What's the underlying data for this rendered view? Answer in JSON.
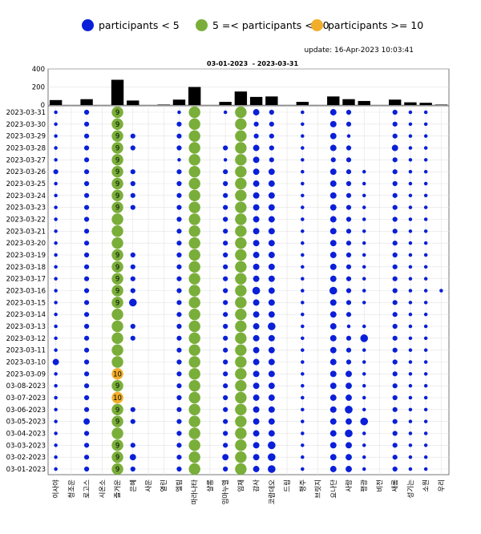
{
  "legend": {
    "items": [
      {
        "label": "participants < 5",
        "color": "#0a1fd8"
      },
      {
        "label": "5 =< participants < 10",
        "color": "#7aae3a"
      },
      {
        "label": "participants >= 10",
        "color": "#f2ae2a"
      }
    ]
  },
  "update_text": "update: 16-Apr-2023 10:03:41",
  "chart_data": {
    "type": "scatter",
    "title": "03-01-2023  - 2023-03-31",
    "bar_ylim": [
      0,
      400
    ],
    "bar_yticks": [
      "400",
      "200",
      "0"
    ],
    "categories": [
      "이사야",
      "청조운",
      "로고스",
      "시온소",
      "즐거운",
      "은혜",
      "사운",
      "열린",
      "엘림",
      "마라나타",
      "샬롬",
      "임마누엘",
      "임재",
      "감사",
      "코람데오",
      "드림",
      "평주",
      "브릿지",
      "요나단",
      "사랑",
      "평광",
      "비전",
      "새롬",
      "성기는",
      "소원",
      "우리"
    ],
    "bar_values": [
      55,
      0,
      65,
      0,
      280,
      50,
      0,
      5,
      60,
      200,
      0,
      35,
      150,
      90,
      95,
      0,
      35,
      0,
      95,
      65,
      45,
      0,
      60,
      30,
      25,
      5
    ],
    "dates": [
      "2023-03-31",
      "2023-03-30",
      "2023-03-29",
      "2023-03-28",
      "2023-03-27",
      "2023-03-26",
      "2023-03-25",
      "2023-03-24",
      "2023-03-23",
      "2023-03-22",
      "2023-03-21",
      "2023-03-20",
      "2023-03-19",
      "2023-03-18",
      "2023-03-17",
      "2023-03-16",
      "2023-03-15",
      "2023-03-14",
      "2023-03-13",
      "2023-03-12",
      "2023-03-11",
      "2023-03-10",
      "2023-03-09",
      "03-08-2023",
      "03-07-2023",
      "03-06-2023",
      "03-05-2023",
      "03-04-2023",
      "03-03-2023",
      "03-02-2023",
      "03-01-2023"
    ],
    "points": [
      {
        "date": "2023-03-31",
        "values": [
          1,
          0,
          2,
          0,
          9,
          0,
          0,
          0,
          1,
          8,
          0,
          1,
          5,
          3,
          2,
          0,
          1,
          0,
          3,
          2,
          0,
          0,
          2,
          1,
          1,
          0
        ]
      },
      {
        "date": "2023-03-30",
        "values": [
          1,
          0,
          2,
          0,
          9,
          0,
          0,
          0,
          2,
          8,
          0,
          0,
          5,
          2,
          2,
          0,
          1,
          0,
          3,
          2,
          0,
          0,
          2,
          1,
          1,
          0
        ]
      },
      {
        "date": "2023-03-29",
        "values": [
          1,
          0,
          2,
          0,
          9,
          2,
          0,
          0,
          2,
          8,
          0,
          0,
          5,
          2,
          2,
          0,
          1,
          0,
          3,
          1,
          0,
          0,
          2,
          1,
          1,
          0
        ]
      },
      {
        "date": "2023-03-28",
        "values": [
          1,
          0,
          2,
          0,
          9,
          2,
          0,
          0,
          2,
          8,
          0,
          2,
          5,
          3,
          2,
          0,
          1,
          0,
          3,
          2,
          0,
          0,
          3,
          1,
          1,
          0
        ]
      },
      {
        "date": "2023-03-27",
        "values": [
          1,
          0,
          2,
          0,
          9,
          0,
          0,
          0,
          1,
          8,
          0,
          1,
          5,
          3,
          2,
          0,
          1,
          0,
          2,
          2,
          0,
          0,
          2,
          1,
          1,
          0
        ]
      },
      {
        "date": "2023-03-26",
        "values": [
          2,
          0,
          2,
          0,
          9,
          2,
          0,
          0,
          2,
          8,
          0,
          2,
          5,
          3,
          3,
          0,
          1,
          0,
          3,
          2,
          1,
          0,
          2,
          1,
          1,
          0
        ]
      },
      {
        "date": "2023-03-25",
        "values": [
          1,
          0,
          2,
          0,
          9,
          2,
          0,
          0,
          2,
          8,
          0,
          2,
          5,
          3,
          3,
          0,
          1,
          0,
          3,
          2,
          1,
          0,
          2,
          1,
          1,
          0
        ]
      },
      {
        "date": "2023-03-24",
        "values": [
          1,
          0,
          2,
          0,
          9,
          2,
          0,
          0,
          2,
          8,
          0,
          2,
          5,
          3,
          3,
          0,
          1,
          0,
          3,
          2,
          1,
          0,
          2,
          1,
          1,
          0
        ]
      },
      {
        "date": "2023-03-23",
        "values": [
          1,
          0,
          2,
          0,
          9,
          2,
          0,
          0,
          2,
          8,
          0,
          2,
          5,
          3,
          3,
          0,
          1,
          0,
          3,
          2,
          1,
          0,
          2,
          1,
          1,
          0
        ]
      },
      {
        "date": "2023-03-22",
        "values": [
          1,
          0,
          2,
          0,
          8,
          0,
          0,
          0,
          2,
          8,
          0,
          2,
          5,
          3,
          3,
          0,
          1,
          0,
          3,
          2,
          1,
          0,
          2,
          1,
          1,
          0
        ]
      },
      {
        "date": "2023-03-21",
        "values": [
          1,
          0,
          2,
          0,
          8,
          0,
          0,
          0,
          2,
          8,
          0,
          2,
          5,
          3,
          3,
          0,
          1,
          0,
          3,
          2,
          1,
          0,
          2,
          1,
          1,
          0
        ]
      },
      {
        "date": "2023-03-20",
        "values": [
          1,
          0,
          2,
          0,
          8,
          0,
          0,
          0,
          2,
          8,
          0,
          2,
          5,
          3,
          3,
          0,
          1,
          0,
          3,
          2,
          1,
          0,
          2,
          1,
          1,
          0
        ]
      },
      {
        "date": "2023-03-19",
        "values": [
          1,
          0,
          2,
          0,
          9,
          2,
          0,
          0,
          2,
          8,
          0,
          2,
          5,
          3,
          3,
          0,
          1,
          0,
          3,
          2,
          1,
          0,
          2,
          1,
          1,
          0
        ]
      },
      {
        "date": "2023-03-18",
        "values": [
          1,
          0,
          2,
          0,
          9,
          2,
          0,
          0,
          2,
          8,
          0,
          2,
          5,
          3,
          3,
          0,
          1,
          0,
          3,
          2,
          1,
          0,
          2,
          1,
          1,
          0
        ]
      },
      {
        "date": "2023-03-17",
        "values": [
          1,
          0,
          2,
          0,
          9,
          2,
          0,
          0,
          2,
          8,
          0,
          2,
          5,
          3,
          3,
          0,
          1,
          0,
          3,
          2,
          1,
          0,
          2,
          1,
          1,
          0
        ]
      },
      {
        "date": "2023-03-16",
        "values": [
          1,
          0,
          2,
          0,
          9,
          2,
          0,
          0,
          2,
          8,
          0,
          2,
          5,
          4,
          3,
          0,
          1,
          0,
          4,
          2,
          1,
          0,
          2,
          1,
          1,
          1
        ]
      },
      {
        "date": "2023-03-15",
        "values": [
          1,
          0,
          2,
          0,
          9,
          4,
          0,
          0,
          2,
          8,
          0,
          2,
          5,
          3,
          3,
          0,
          1,
          0,
          3,
          2,
          1,
          0,
          2,
          1,
          1,
          0
        ]
      },
      {
        "date": "2023-03-14",
        "values": [
          1,
          0,
          2,
          0,
          8,
          0,
          0,
          0,
          2,
          8,
          0,
          2,
          5,
          3,
          3,
          0,
          1,
          0,
          3,
          2,
          0,
          0,
          2,
          1,
          1,
          0
        ]
      },
      {
        "date": "2023-03-13",
        "values": [
          1,
          0,
          2,
          0,
          8,
          2,
          0,
          0,
          2,
          8,
          0,
          2,
          5,
          3,
          4,
          0,
          1,
          0,
          3,
          1,
          1,
          0,
          2,
          1,
          1,
          0
        ]
      },
      {
        "date": "2023-03-12",
        "values": [
          1,
          0,
          2,
          0,
          8,
          2,
          0,
          0,
          2,
          8,
          0,
          2,
          5,
          3,
          3,
          0,
          1,
          0,
          3,
          2,
          4,
          0,
          2,
          1,
          1,
          0
        ]
      },
      {
        "date": "2023-03-11",
        "values": [
          1,
          0,
          2,
          0,
          8,
          0,
          0,
          0,
          2,
          8,
          0,
          2,
          5,
          3,
          3,
          0,
          1,
          0,
          3,
          2,
          1,
          0,
          2,
          1,
          1,
          0
        ]
      },
      {
        "date": "2023-03-10",
        "values": [
          3,
          0,
          2,
          0,
          8,
          0,
          0,
          0,
          2,
          8,
          0,
          2,
          5,
          3,
          3,
          0,
          1,
          0,
          3,
          2,
          1,
          0,
          2,
          1,
          1,
          0
        ]
      },
      {
        "date": "2023-03-09",
        "values": [
          1,
          0,
          2,
          0,
          10,
          0,
          0,
          0,
          2,
          8,
          0,
          2,
          5,
          3,
          3,
          0,
          1,
          0,
          3,
          3,
          1,
          0,
          2,
          1,
          1,
          0
        ]
      },
      {
        "date": "03-08-2023",
        "values": [
          1,
          0,
          2,
          0,
          9,
          0,
          0,
          0,
          2,
          8,
          0,
          2,
          5,
          3,
          3,
          0,
          1,
          0,
          3,
          3,
          1,
          0,
          2,
          1,
          1,
          0
        ]
      },
      {
        "date": "03-07-2023",
        "values": [
          1,
          0,
          2,
          0,
          10,
          0,
          0,
          0,
          2,
          8,
          0,
          2,
          5,
          3,
          3,
          0,
          1,
          0,
          3,
          3,
          1,
          0,
          2,
          1,
          1,
          0
        ]
      },
      {
        "date": "03-06-2023",
        "values": [
          1,
          0,
          2,
          0,
          9,
          2,
          0,
          0,
          2,
          8,
          0,
          2,
          5,
          3,
          3,
          0,
          1,
          0,
          3,
          4,
          1,
          0,
          2,
          1,
          1,
          0
        ]
      },
      {
        "date": "03-05-2023",
        "values": [
          1,
          0,
          3,
          0,
          9,
          2,
          0,
          0,
          2,
          8,
          0,
          2,
          5,
          3,
          3,
          0,
          1,
          0,
          3,
          3,
          4,
          0,
          2,
          1,
          1,
          0
        ]
      },
      {
        "date": "03-04-2023",
        "values": [
          1,
          0,
          2,
          0,
          8,
          0,
          0,
          0,
          2,
          8,
          0,
          2,
          5,
          3,
          3,
          0,
          1,
          0,
          3,
          4,
          1,
          0,
          2,
          1,
          1,
          0
        ]
      },
      {
        "date": "03-03-2023",
        "values": [
          1,
          0,
          2,
          0,
          9,
          2,
          0,
          0,
          2,
          8,
          0,
          2,
          5,
          3,
          4,
          0,
          1,
          0,
          3,
          3,
          1,
          0,
          2,
          1,
          1,
          0
        ]
      },
      {
        "date": "03-02-2023",
        "values": [
          1,
          0,
          2,
          0,
          9,
          3,
          0,
          0,
          2,
          8,
          0,
          3,
          5,
          3,
          4,
          0,
          1,
          0,
          3,
          3,
          1,
          0,
          2,
          1,
          1,
          0
        ]
      },
      {
        "date": "03-01-2023",
        "values": [
          1,
          0,
          2,
          0,
          9,
          2,
          0,
          0,
          2,
          8,
          0,
          2,
          5,
          3,
          4,
          0,
          1,
          0,
          3,
          3,
          1,
          0,
          2,
          1,
          1,
          0
        ]
      }
    ],
    "labeled_value_column": "즐거운",
    "grid": true
  }
}
